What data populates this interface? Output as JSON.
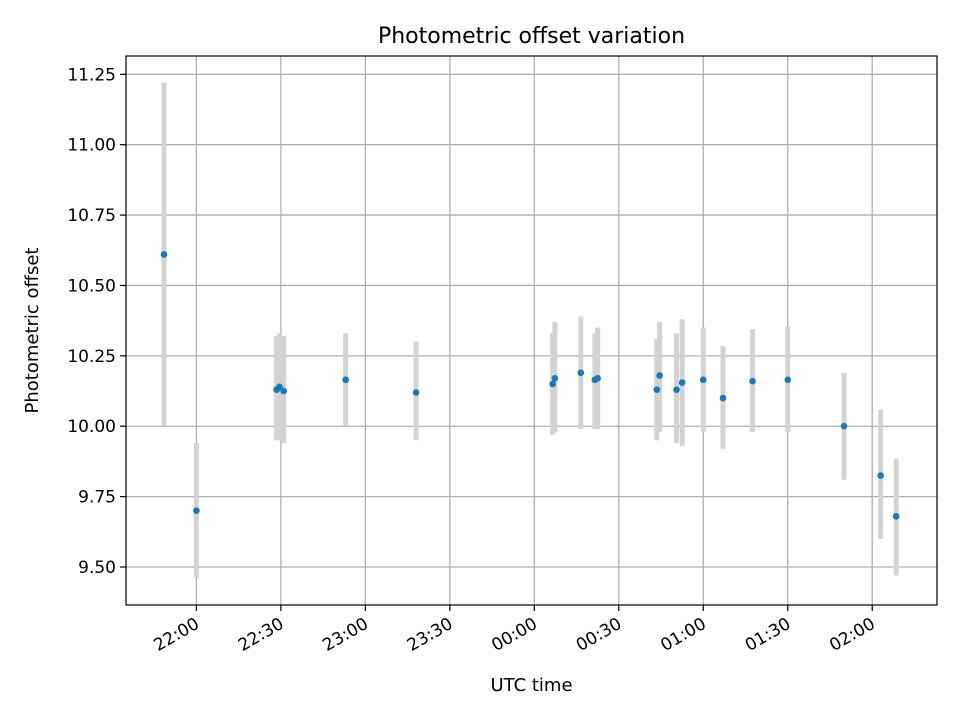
{
  "chart_data": {
    "type": "scatter",
    "title": "Photometric offset variation",
    "xlabel": "UTC time",
    "ylabel": "Photometric offset",
    "x_unit": "minutes relative to 00:00 UTC",
    "xlim": [
      -145,
      143
    ],
    "ylim": [
      9.365,
      11.315
    ],
    "x_ticks": [
      {
        "value": -120,
        "label": "22:00"
      },
      {
        "value": -90,
        "label": "22:30"
      },
      {
        "value": -60,
        "label": "23:00"
      },
      {
        "value": -30,
        "label": "23:30"
      },
      {
        "value": 0,
        "label": "00:00"
      },
      {
        "value": 30,
        "label": "00:30"
      },
      {
        "value": 60,
        "label": "01:00"
      },
      {
        "value": 90,
        "label": "01:30"
      },
      {
        "value": 120,
        "label": "02:00"
      }
    ],
    "y_ticks": [
      {
        "value": 9.5,
        "label": "9.50"
      },
      {
        "value": 9.75,
        "label": "9.75"
      },
      {
        "value": 10.0,
        "label": "10.00"
      },
      {
        "value": 10.25,
        "label": "10.25"
      },
      {
        "value": 10.5,
        "label": "10.50"
      },
      {
        "value": 10.75,
        "label": "10.75"
      },
      {
        "value": 11.0,
        "label": "11.00"
      },
      {
        "value": 11.25,
        "label": "11.25"
      }
    ],
    "grid": true,
    "marker_color": "#1f77b4",
    "errorbar_color": "#d3d3d3",
    "points": [
      {
        "x": -131.5,
        "y": 10.61,
        "lo": 10.0,
        "hi": 11.22
      },
      {
        "x": -120.0,
        "y": 9.7,
        "lo": 9.46,
        "hi": 9.94
      },
      {
        "x": -91.5,
        "y": 10.13,
        "lo": 9.95,
        "hi": 10.32
      },
      {
        "x": -90.5,
        "y": 10.14,
        "lo": 9.95,
        "hi": 10.33
      },
      {
        "x": -89.0,
        "y": 10.125,
        "lo": 9.94,
        "hi": 10.32
      },
      {
        "x": -67.0,
        "y": 10.165,
        "lo": 10.0,
        "hi": 10.33
      },
      {
        "x": -42.0,
        "y": 10.12,
        "lo": 9.95,
        "hi": 10.3
      },
      {
        "x": 6.5,
        "y": 10.15,
        "lo": 9.97,
        "hi": 10.33
      },
      {
        "x": 7.3,
        "y": 10.17,
        "lo": 9.98,
        "hi": 10.37
      },
      {
        "x": 16.5,
        "y": 10.19,
        "lo": 9.99,
        "hi": 10.39
      },
      {
        "x": 21.5,
        "y": 10.165,
        "lo": 9.99,
        "hi": 10.33
      },
      {
        "x": 22.5,
        "y": 10.17,
        "lo": 9.99,
        "hi": 10.35
      },
      {
        "x": 43.5,
        "y": 10.13,
        "lo": 9.95,
        "hi": 10.31
      },
      {
        "x": 44.5,
        "y": 10.18,
        "lo": 9.98,
        "hi": 10.37
      },
      {
        "x": 50.5,
        "y": 10.13,
        "lo": 9.94,
        "hi": 10.33
      },
      {
        "x": 52.5,
        "y": 10.155,
        "lo": 9.93,
        "hi": 10.38
      },
      {
        "x": 60.0,
        "y": 10.165,
        "lo": 9.98,
        "hi": 10.35
      },
      {
        "x": 67.0,
        "y": 10.1,
        "lo": 9.92,
        "hi": 10.285
      },
      {
        "x": 77.5,
        "y": 10.16,
        "lo": 9.98,
        "hi": 10.345
      },
      {
        "x": 90.0,
        "y": 10.165,
        "lo": 9.98,
        "hi": 10.355
      },
      {
        "x": 110.0,
        "y": 10.0,
        "lo": 9.81,
        "hi": 10.19
      },
      {
        "x": 123.0,
        "y": 9.825,
        "lo": 9.6,
        "hi": 10.06
      },
      {
        "x": 128.5,
        "y": 9.68,
        "lo": 9.47,
        "hi": 9.885
      }
    ]
  }
}
